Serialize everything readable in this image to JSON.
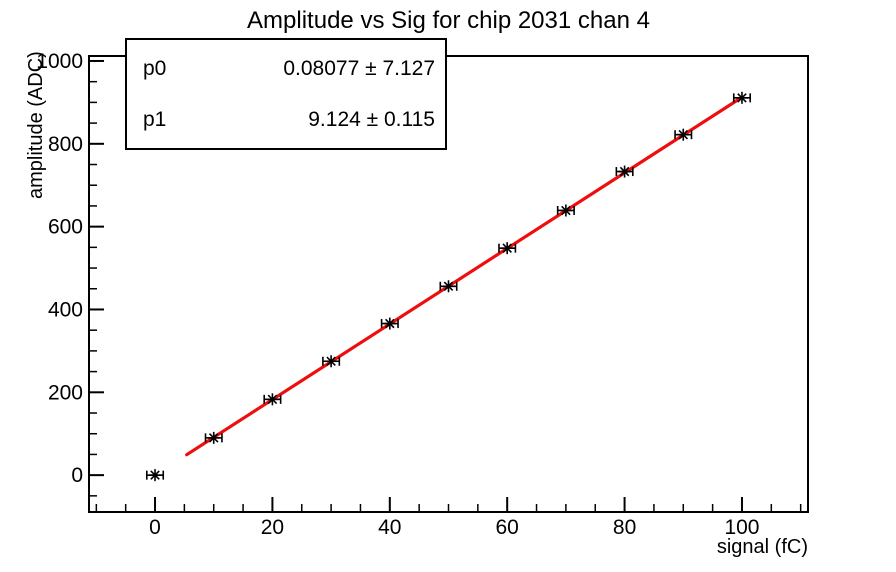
{
  "window": {
    "background": "#ffffff"
  },
  "stats_box": {
    "rows": [
      {
        "name": "p0",
        "value": "0.08077 ± 7.127"
      },
      {
        "name": "p1",
        "value": "9.124 ± 0.115"
      }
    ]
  },
  "chart_data": {
    "type": "scatter",
    "title": "Amplitude vs Sig for chip 2031 chan 4",
    "xlabel": "signal (fC)",
    "ylabel": "amplitude (ADC)",
    "xlim": [
      -11.25,
      111.25
    ],
    "ylim": [
      -89,
      1012
    ],
    "x_major_ticks": [
      0,
      20,
      40,
      60,
      80,
      100
    ],
    "x_minor_step": 5,
    "y_major_ticks": [
      0,
      200,
      400,
      600,
      800,
      1000
    ],
    "y_minor_step": 50,
    "grid": false,
    "legend": "none",
    "marker": "asterisk-with-x-error-bars",
    "points": {
      "x": [
        0,
        10,
        20,
        30,
        40,
        50,
        60,
        70,
        80,
        90,
        100
      ],
      "y": [
        0,
        90,
        183,
        275,
        366,
        456,
        548,
        639,
        733,
        822,
        911
      ],
      "x_err": 1.4
    },
    "fit": {
      "p0": 0.08077,
      "p1": 9.124,
      "x_range": [
        5.4,
        100
      ],
      "color": "#ee0e0e"
    },
    "colors": {
      "marker": "#000000",
      "frame": "#000000",
      "text": "#000000",
      "background": "#ffffff"
    }
  }
}
